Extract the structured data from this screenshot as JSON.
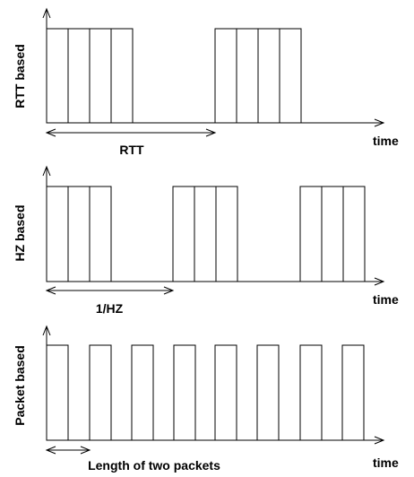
{
  "rows": [
    {
      "id": "rtt",
      "ylabel": "RTT based",
      "xlabel": "time",
      "packet_width": 24,
      "bursts": [
        [
          52,
          76,
          100,
          124
        ],
        [
          240,
          264,
          288,
          312
        ]
      ],
      "span": {
        "from": 52,
        "to": 240,
        "label": "RTT"
      }
    },
    {
      "id": "hz",
      "ylabel": "HZ based",
      "xlabel": "time",
      "packet_width": 24,
      "bursts": [
        [
          52,
          76,
          100
        ],
        [
          193,
          217,
          241
        ],
        [
          335,
          359,
          383
        ]
      ],
      "span": {
        "from": 52,
        "to": 193,
        "label": "1/HZ"
      }
    },
    {
      "id": "packet",
      "ylabel": "Packet based",
      "xlabel": "time",
      "packet_width": 24,
      "bursts": [
        [
          52
        ],
        [
          100
        ],
        [
          147
        ],
        [
          194
        ],
        [
          240
        ],
        [
          287
        ],
        [
          335
        ],
        [
          382
        ]
      ],
      "span": {
        "from": 52,
        "to": 100,
        "label": "Length of two packets"
      }
    }
  ]
}
